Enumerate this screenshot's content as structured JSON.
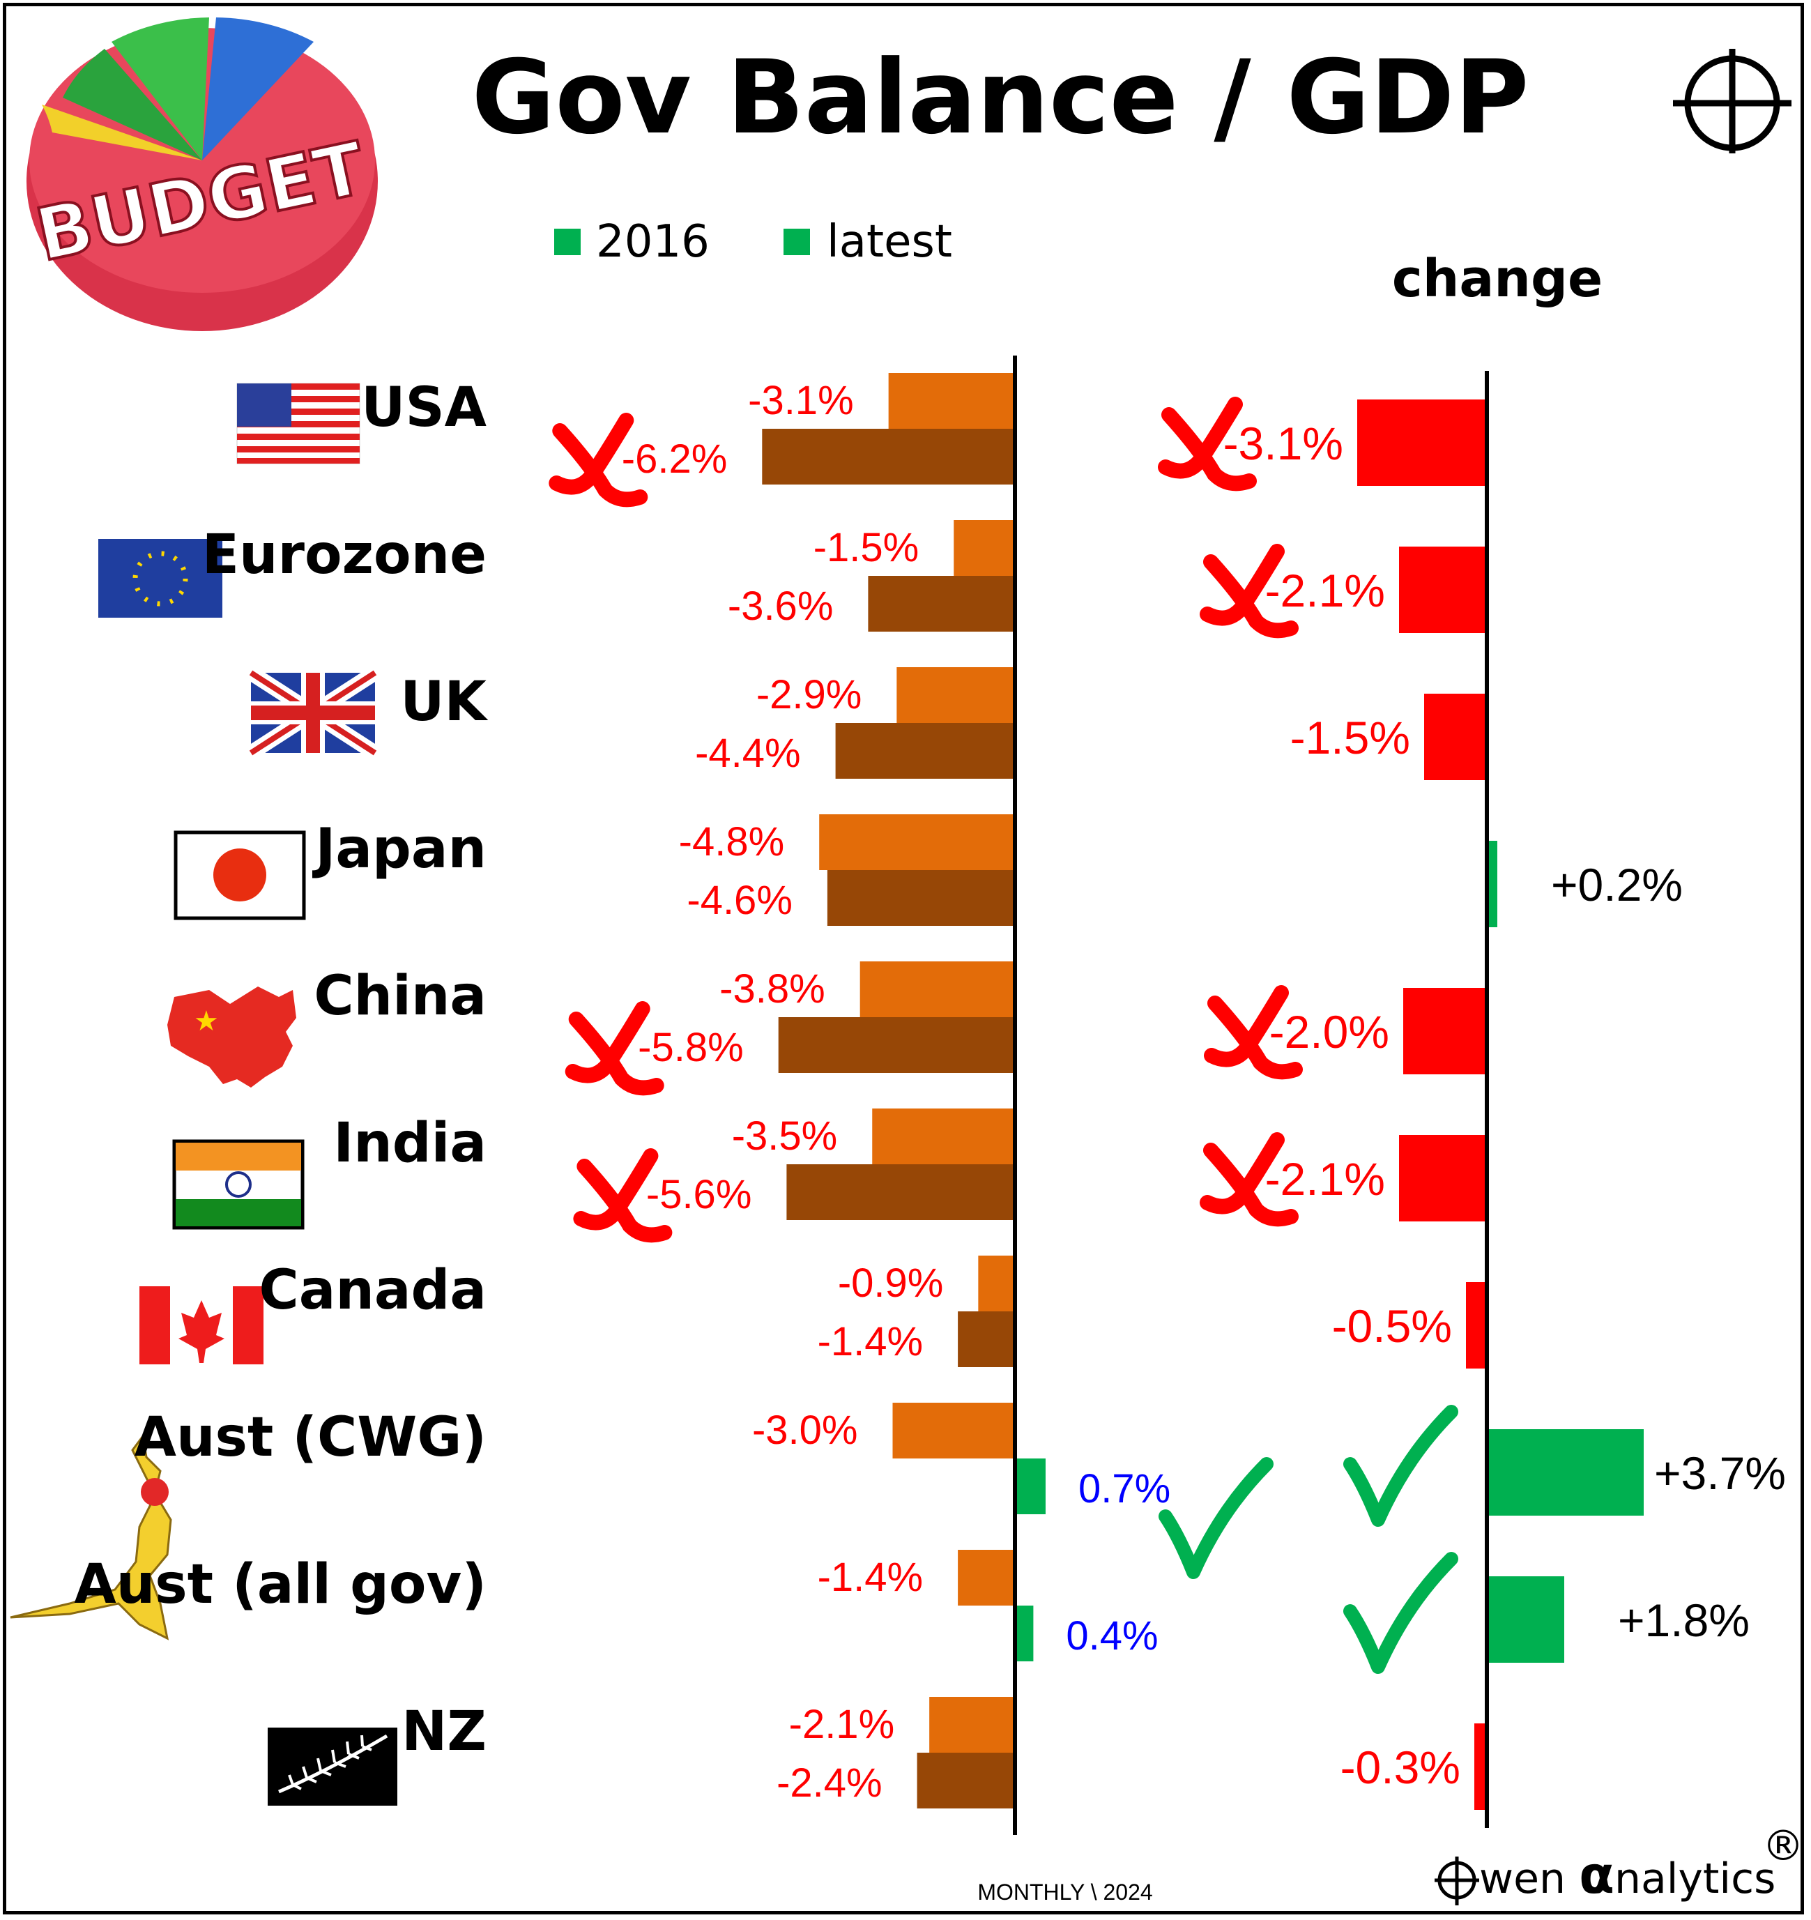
{
  "title": "Gov Balance / GDP",
  "legend": [
    {
      "label": "2016",
      "color": "#00b050"
    },
    {
      "label": "latest",
      "color": "#00b050"
    }
  ],
  "change_header": "change",
  "footer": "MONTHLY \\ 2024",
  "brand": {
    "prefix": "wen ",
    "alpha": "α",
    "suffix": "nalytics",
    "reg": "®"
  },
  "logo_text": "BUDGET",
  "colors": {
    "bar_2016": "#e36c09",
    "bar_latest": "#974706",
    "positive": "#00b050",
    "negative": "#ff0000",
    "label_negative": "#ff0000",
    "label_positive": "#0000ff",
    "label_change_positive": "#000000"
  },
  "chart_data": [
    {
      "type": "bar",
      "orientation": "horizontal",
      "categories": [
        "USA",
        "Eurozone",
        "UK",
        "Japan",
        "China",
        "India",
        "Canada",
        "Aust (CWG)",
        "Aust (all gov)",
        "NZ"
      ],
      "series": [
        {
          "name": "2016",
          "values": [
            -3.1,
            -1.5,
            -2.9,
            -4.8,
            -3.8,
            -3.5,
            -0.9,
            -3.0,
            -1.4,
            -2.1
          ]
        },
        {
          "name": "latest",
          "values": [
            -6.2,
            -3.6,
            -4.4,
            -4.6,
            -5.8,
            -5.6,
            -1.4,
            0.7,
            0.4,
            -2.4
          ]
        }
      ],
      "labels_2016": [
        "-3.1%",
        "-1.5%",
        "-2.9%",
        "-4.8%",
        "-3.8%",
        "-3.5%",
        "-0.9%",
        "-3.0%",
        "-1.4%",
        "-2.1%"
      ],
      "labels_latest": [
        "-6.2%",
        "-3.6%",
        "-4.4%",
        "-4.6%",
        "-5.8%",
        "-5.6%",
        "-1.4%",
        "0.7%",
        "0.4%",
        "-2.4%"
      ],
      "xlim": [
        -6.2,
        0.7
      ],
      "grid": false
    },
    {
      "type": "bar",
      "orientation": "horizontal",
      "title": "change",
      "categories": [
        "USA",
        "Eurozone",
        "UK",
        "Japan",
        "China",
        "India",
        "Canada",
        "Aust (CWG)",
        "Aust (all gov)",
        "NZ"
      ],
      "values": [
        -3.1,
        -2.1,
        -1.5,
        0.2,
        -2.0,
        -2.1,
        -0.5,
        3.7,
        1.8,
        -0.3
      ],
      "labels": [
        "-3.1%",
        "-2.1%",
        "-1.5%",
        "+0.2%",
        "-2.0%",
        "-2.1%",
        "-0.5%",
        "+3.7%",
        "+1.8%",
        "-0.3%"
      ],
      "xlim": [
        -3.1,
        3.7
      ],
      "grid": false
    }
  ],
  "markers": {
    "left_cross": [
      true,
      false,
      false,
      false,
      true,
      true,
      false,
      false,
      false,
      false
    ],
    "change_cross": [
      true,
      true,
      false,
      false,
      true,
      true,
      false,
      false,
      false,
      false
    ],
    "change_tick": [
      false,
      false,
      false,
      false,
      false,
      false,
      false,
      true,
      true,
      false
    ],
    "left_tick_aust": true
  },
  "flags": [
    "usa-flag",
    "eu-flag",
    "uk-flag",
    "japan-flag",
    "china-map",
    "india-flag",
    "canada-flag",
    "kangaroo",
    "kangaroo",
    "nz-fern-flag"
  ]
}
